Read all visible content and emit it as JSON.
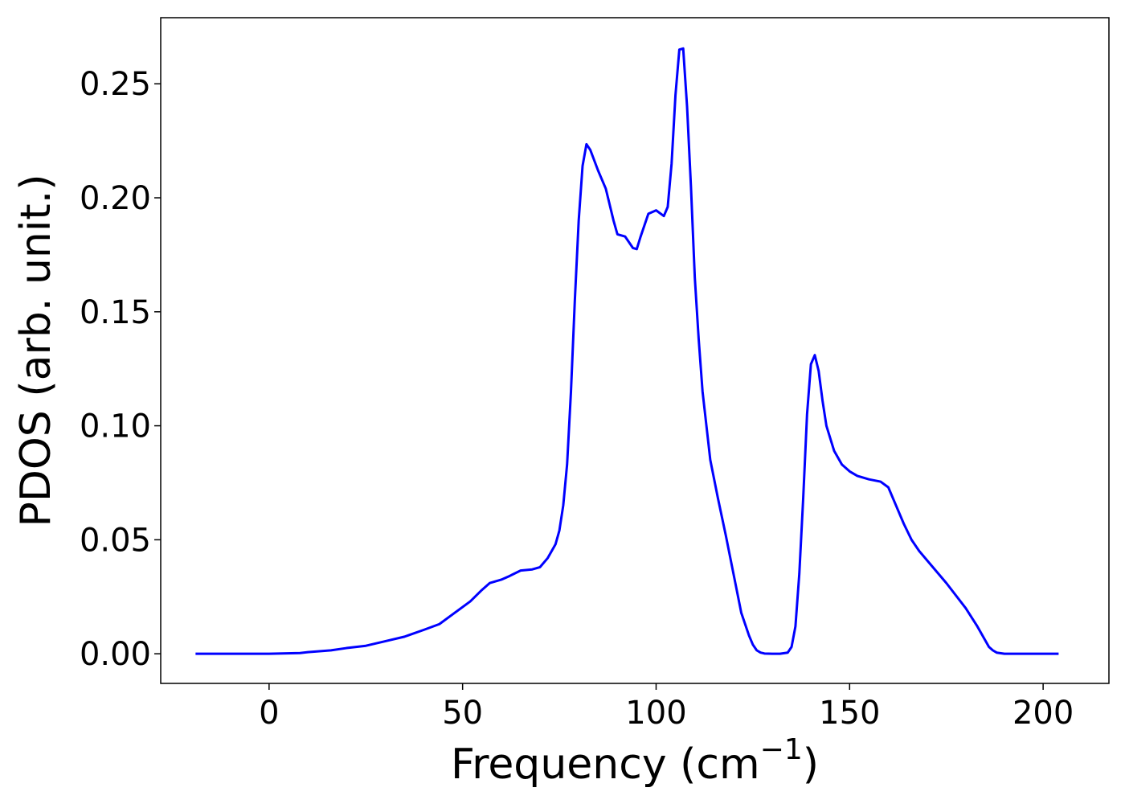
{
  "chart_data": {
    "type": "line",
    "title": "",
    "xlabel": "Frequency (cm",
    "xlabel_exponent": "−1",
    "xlabel_close": ")",
    "ylabel": "PDOS (arb. unit.)",
    "xlim": [
      -28,
      217
    ],
    "ylim": [
      -0.013,
      0.279
    ],
    "xticks": [
      0,
      50,
      100,
      150,
      200
    ],
    "xtick_labels": [
      "0",
      "50",
      "100",
      "150",
      "200"
    ],
    "yticks": [
      0.0,
      0.05,
      0.1,
      0.15,
      0.2,
      0.25
    ],
    "ytick_labels": [
      "0.00",
      "0.05",
      "0.10",
      "0.15",
      "0.20",
      "0.25"
    ],
    "grid": false,
    "series": [
      {
        "color": "#0000ff",
        "x": [
          -19,
          0,
          8,
          10,
          16,
          20,
          25,
          30,
          35,
          40,
          44,
          48,
          52,
          55,
          57,
          60,
          62,
          65,
          68,
          70,
          72,
          74,
          75,
          76,
          77,
          78,
          79,
          80,
          81,
          82,
          83,
          85,
          87,
          89,
          90,
          92,
          94,
          95,
          96,
          98,
          100,
          102,
          103,
          104,
          105,
          106,
          107,
          108,
          109,
          110,
          111,
          112,
          114,
          116,
          118,
          120,
          122,
          124,
          125,
          126,
          127,
          128,
          130,
          132,
          134,
          135,
          136,
          137,
          138,
          139,
          140,
          141,
          142,
          143,
          144,
          146,
          148,
          150,
          152,
          155,
          158,
          160,
          162,
          164,
          166,
          168,
          170,
          175,
          180,
          183,
          185,
          186,
          187,
          188,
          190,
          195,
          204
        ],
        "y": [
          0,
          0,
          0.0003,
          0.0007,
          0.0015,
          0.0025,
          0.0035,
          0.0055,
          0.0075,
          0.0105,
          0.013,
          0.018,
          0.023,
          0.028,
          0.031,
          0.0325,
          0.034,
          0.0365,
          0.037,
          0.038,
          0.042,
          0.048,
          0.054,
          0.065,
          0.083,
          0.115,
          0.155,
          0.19,
          0.214,
          0.2235,
          0.221,
          0.212,
          0.204,
          0.19,
          0.184,
          0.183,
          0.178,
          0.1775,
          0.183,
          0.193,
          0.1945,
          0.192,
          0.196,
          0.215,
          0.245,
          0.265,
          0.2655,
          0.24,
          0.205,
          0.165,
          0.138,
          0.115,
          0.085,
          0.068,
          0.052,
          0.035,
          0.018,
          0.008,
          0.004,
          0.0015,
          0.0005,
          0.0001,
          0,
          0,
          0.0005,
          0.003,
          0.012,
          0.035,
          0.068,
          0.105,
          0.127,
          0.131,
          0.124,
          0.111,
          0.1,
          0.089,
          0.083,
          0.08,
          0.078,
          0.0765,
          0.0755,
          0.073,
          0.065,
          0.057,
          0.05,
          0.045,
          0.041,
          0.031,
          0.02,
          0.012,
          0.006,
          0.003,
          0.0015,
          0.0005,
          0,
          0,
          0
        ]
      }
    ]
  }
}
